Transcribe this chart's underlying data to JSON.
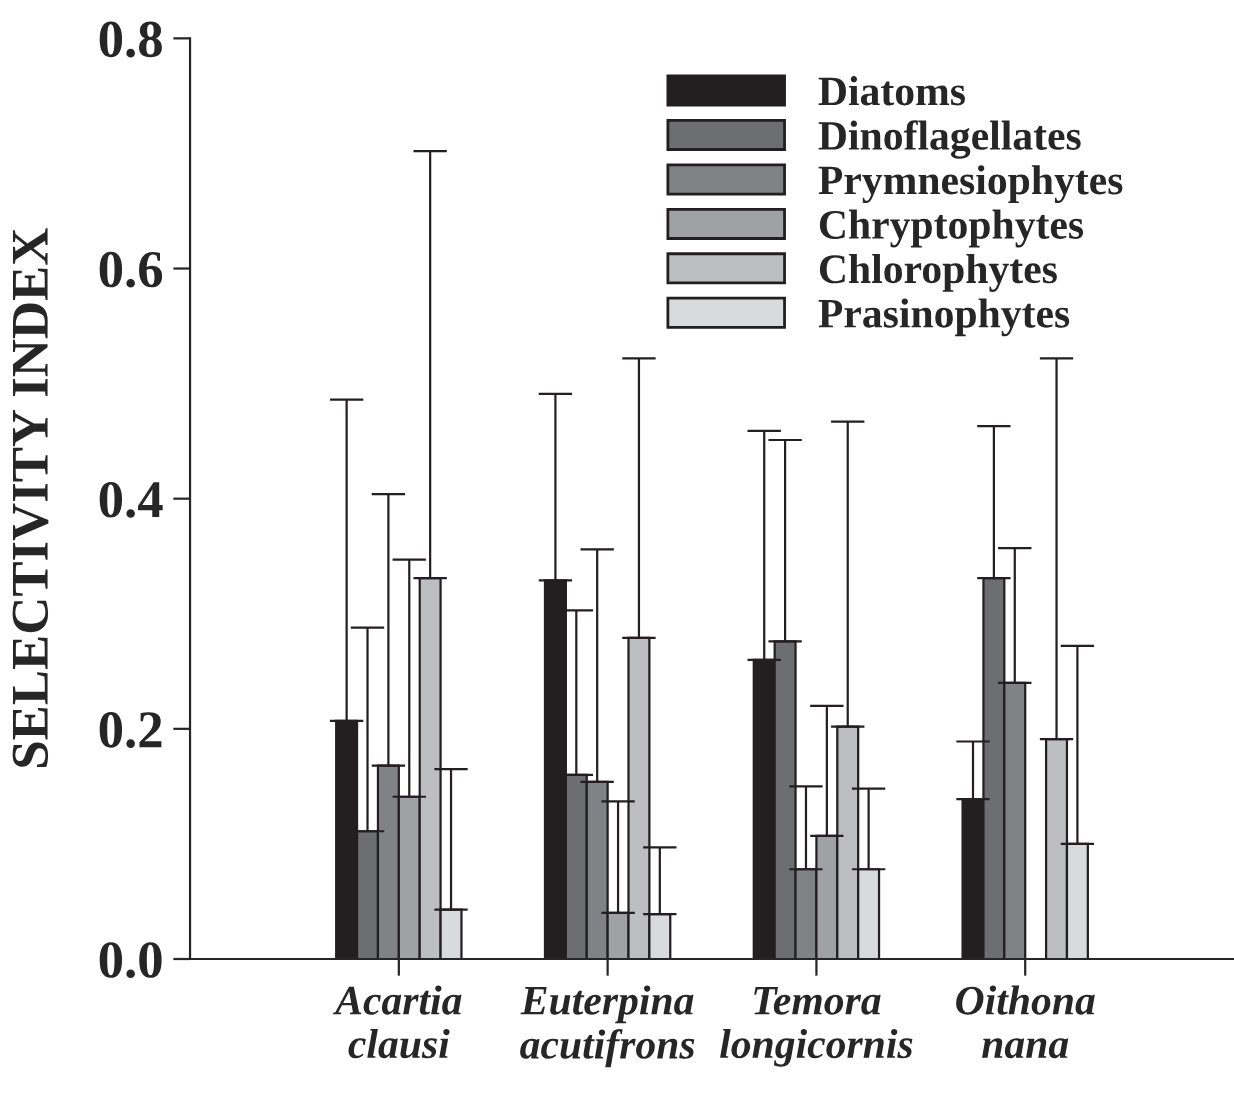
{
  "chart_data": {
    "type": "bar",
    "ylabel": "SELECTIVITY INDEX",
    "categories": [
      "Acartia\nclausi",
      "Euterpina\nacutifrons",
      "Temora\nlongicornis",
      "Oithona\nnana"
    ],
    "series": [
      {
        "name": "Diatoms",
        "color": "#231f20",
        "values": [
          0.207,
          0.329,
          0.26,
          0.139
        ],
        "errors": [
          [
            0.207,
            0.486
          ],
          [
            0.329,
            0.491
          ],
          [
            0.26,
            0.459
          ],
          [
            0.139,
            0.189
          ]
        ]
      },
      {
        "name": "Dinoflagellates",
        "color": "#6d6e71",
        "values": [
          0.111,
          0.16,
          0.276,
          0.331
        ],
        "errors": [
          [
            0.111,
            0.288
          ],
          [
            0.16,
            0.303
          ],
          [
            0.276,
            0.451
          ],
          [
            0.331,
            0.463
          ]
        ]
      },
      {
        "name": "Prymnesiophytes",
        "color": "#808285",
        "values": [
          0.168,
          0.154,
          0.078,
          0.24
        ],
        "errors": [
          [
            0.168,
            0.404
          ],
          [
            0.154,
            0.356
          ],
          [
            0.078,
            0.15
          ],
          [
            0.24,
            0.357
          ]
        ]
      },
      {
        "name": "Chryptophytes",
        "color": "#a0a1a4",
        "values": [
          0.141,
          0.04,
          0.107,
          null
        ],
        "errors": [
          [
            0.141,
            0.347
          ],
          [
            0.04,
            0.137
          ],
          [
            0.107,
            0.22
          ],
          null
        ]
      },
      {
        "name": "Chlorophytes",
        "color": "#bcbec0",
        "values": [
          0.331,
          0.279,
          0.202,
          0.191
        ],
        "errors": [
          [
            0.331,
            0.702
          ],
          [
            0.279,
            0.522
          ],
          [
            0.202,
            0.467
          ],
          [
            0.191,
            0.522
          ]
        ]
      },
      {
        "name": "Prasinophytes",
        "color": "#d9dadb",
        "values": [
          0.043,
          0.039,
          0.078,
          0.1
        ],
        "errors": [
          [
            0.043,
            0.165
          ],
          [
            0.039,
            0.097
          ],
          [
            0.078,
            0.148
          ],
          [
            0.1,
            0.272
          ]
        ]
      }
    ],
    "ylim": [
      0,
      0.8
    ],
    "yticks": [
      {
        "value": 0,
        "label": "0.0"
      },
      {
        "value": 0.2,
        "label": "0.2"
      },
      {
        "value": 0.4,
        "label": "0.4"
      },
      {
        "value": 0.6,
        "label": "0.6"
      },
      {
        "value": 0.8,
        "label": "0.8"
      }
    ],
    "grid": false,
    "legend": "top right"
  }
}
